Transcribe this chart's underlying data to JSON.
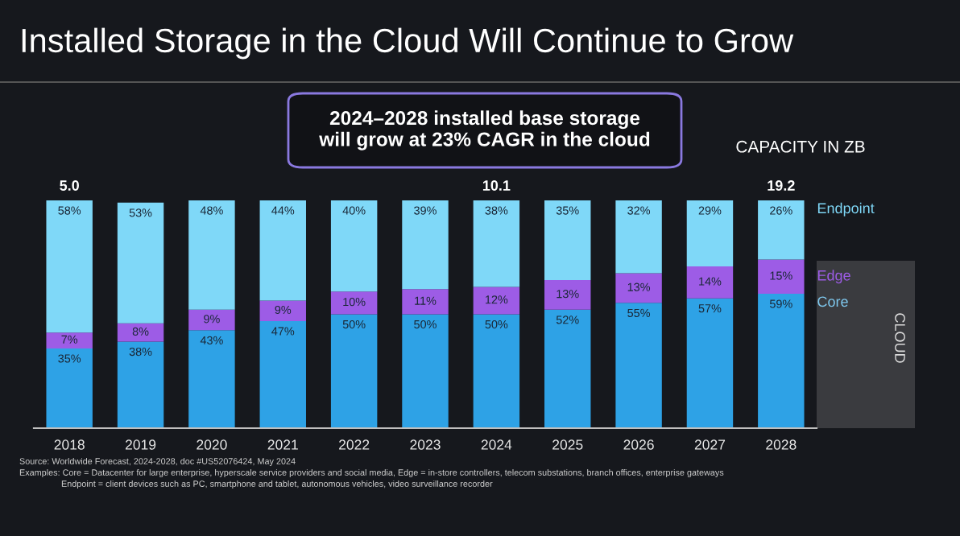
{
  "chart_data": {
    "type": "bar",
    "stacked": true,
    "tick_labels": "x",
    "legend": "right",
    "grid": false,
    "title": "Installed Storage in the Cloud Will Continue to Grow",
    "categories": [
      "2018",
      "2019",
      "2020",
      "2021",
      "2022",
      "2023",
      "2024",
      "2025",
      "2026",
      "2027",
      "2028"
    ],
    "series": [
      {
        "name": "Core",
        "color": "#2ea2e6",
        "values": [
          35,
          38,
          43,
          47,
          50,
          50,
          50,
          52,
          55,
          57,
          59
        ],
        "value_labels": [
          "35%",
          "38%",
          "43%",
          "47%",
          "50%",
          "50%",
          "50%",
          "52%",
          "55%",
          "57%",
          "59%"
        ]
      },
      {
        "name": "Edge",
        "color": "#9d5ce6",
        "values": [
          7,
          8,
          9,
          9,
          10,
          11,
          12,
          13,
          13,
          14,
          15
        ],
        "value_labels": [
          "7%",
          "8%",
          "9%",
          "9%",
          "10%",
          "11%",
          "12%",
          "13%",
          "13%",
          "14%",
          "15%"
        ]
      },
      {
        "name": "Endpoint",
        "color": "#7fd8f8",
        "values": [
          58,
          53,
          48,
          44,
          40,
          39,
          38,
          35,
          32,
          29,
          26
        ],
        "value_labels": [
          "58%",
          "53%",
          "48%",
          "44%",
          "40%",
          "39%",
          "38%",
          "35%",
          "32%",
          "29%",
          "26%"
        ]
      }
    ],
    "annotations": [
      "2024–2028 installed base storage\nwill grow at 23% CAGR in the cloud",
      "CAPACITY IN ZB",
      "CLOUD",
      "Source: Worldwide Forecast, 2024-2028, doc #US52076424, May 2024",
      "Examples: Core = Datacenter for large enterprise, hyperscale service providers and social media, Edge = in-store controllers, telecom substations, branch offices, enterprise gateways",
      "Endpoint = client devices such as PC, smartphone and tablet, autonomous vehicles, video surveillance recorder",
      "5.0",
      "10.1",
      "19.2"
    ]
  }
}
